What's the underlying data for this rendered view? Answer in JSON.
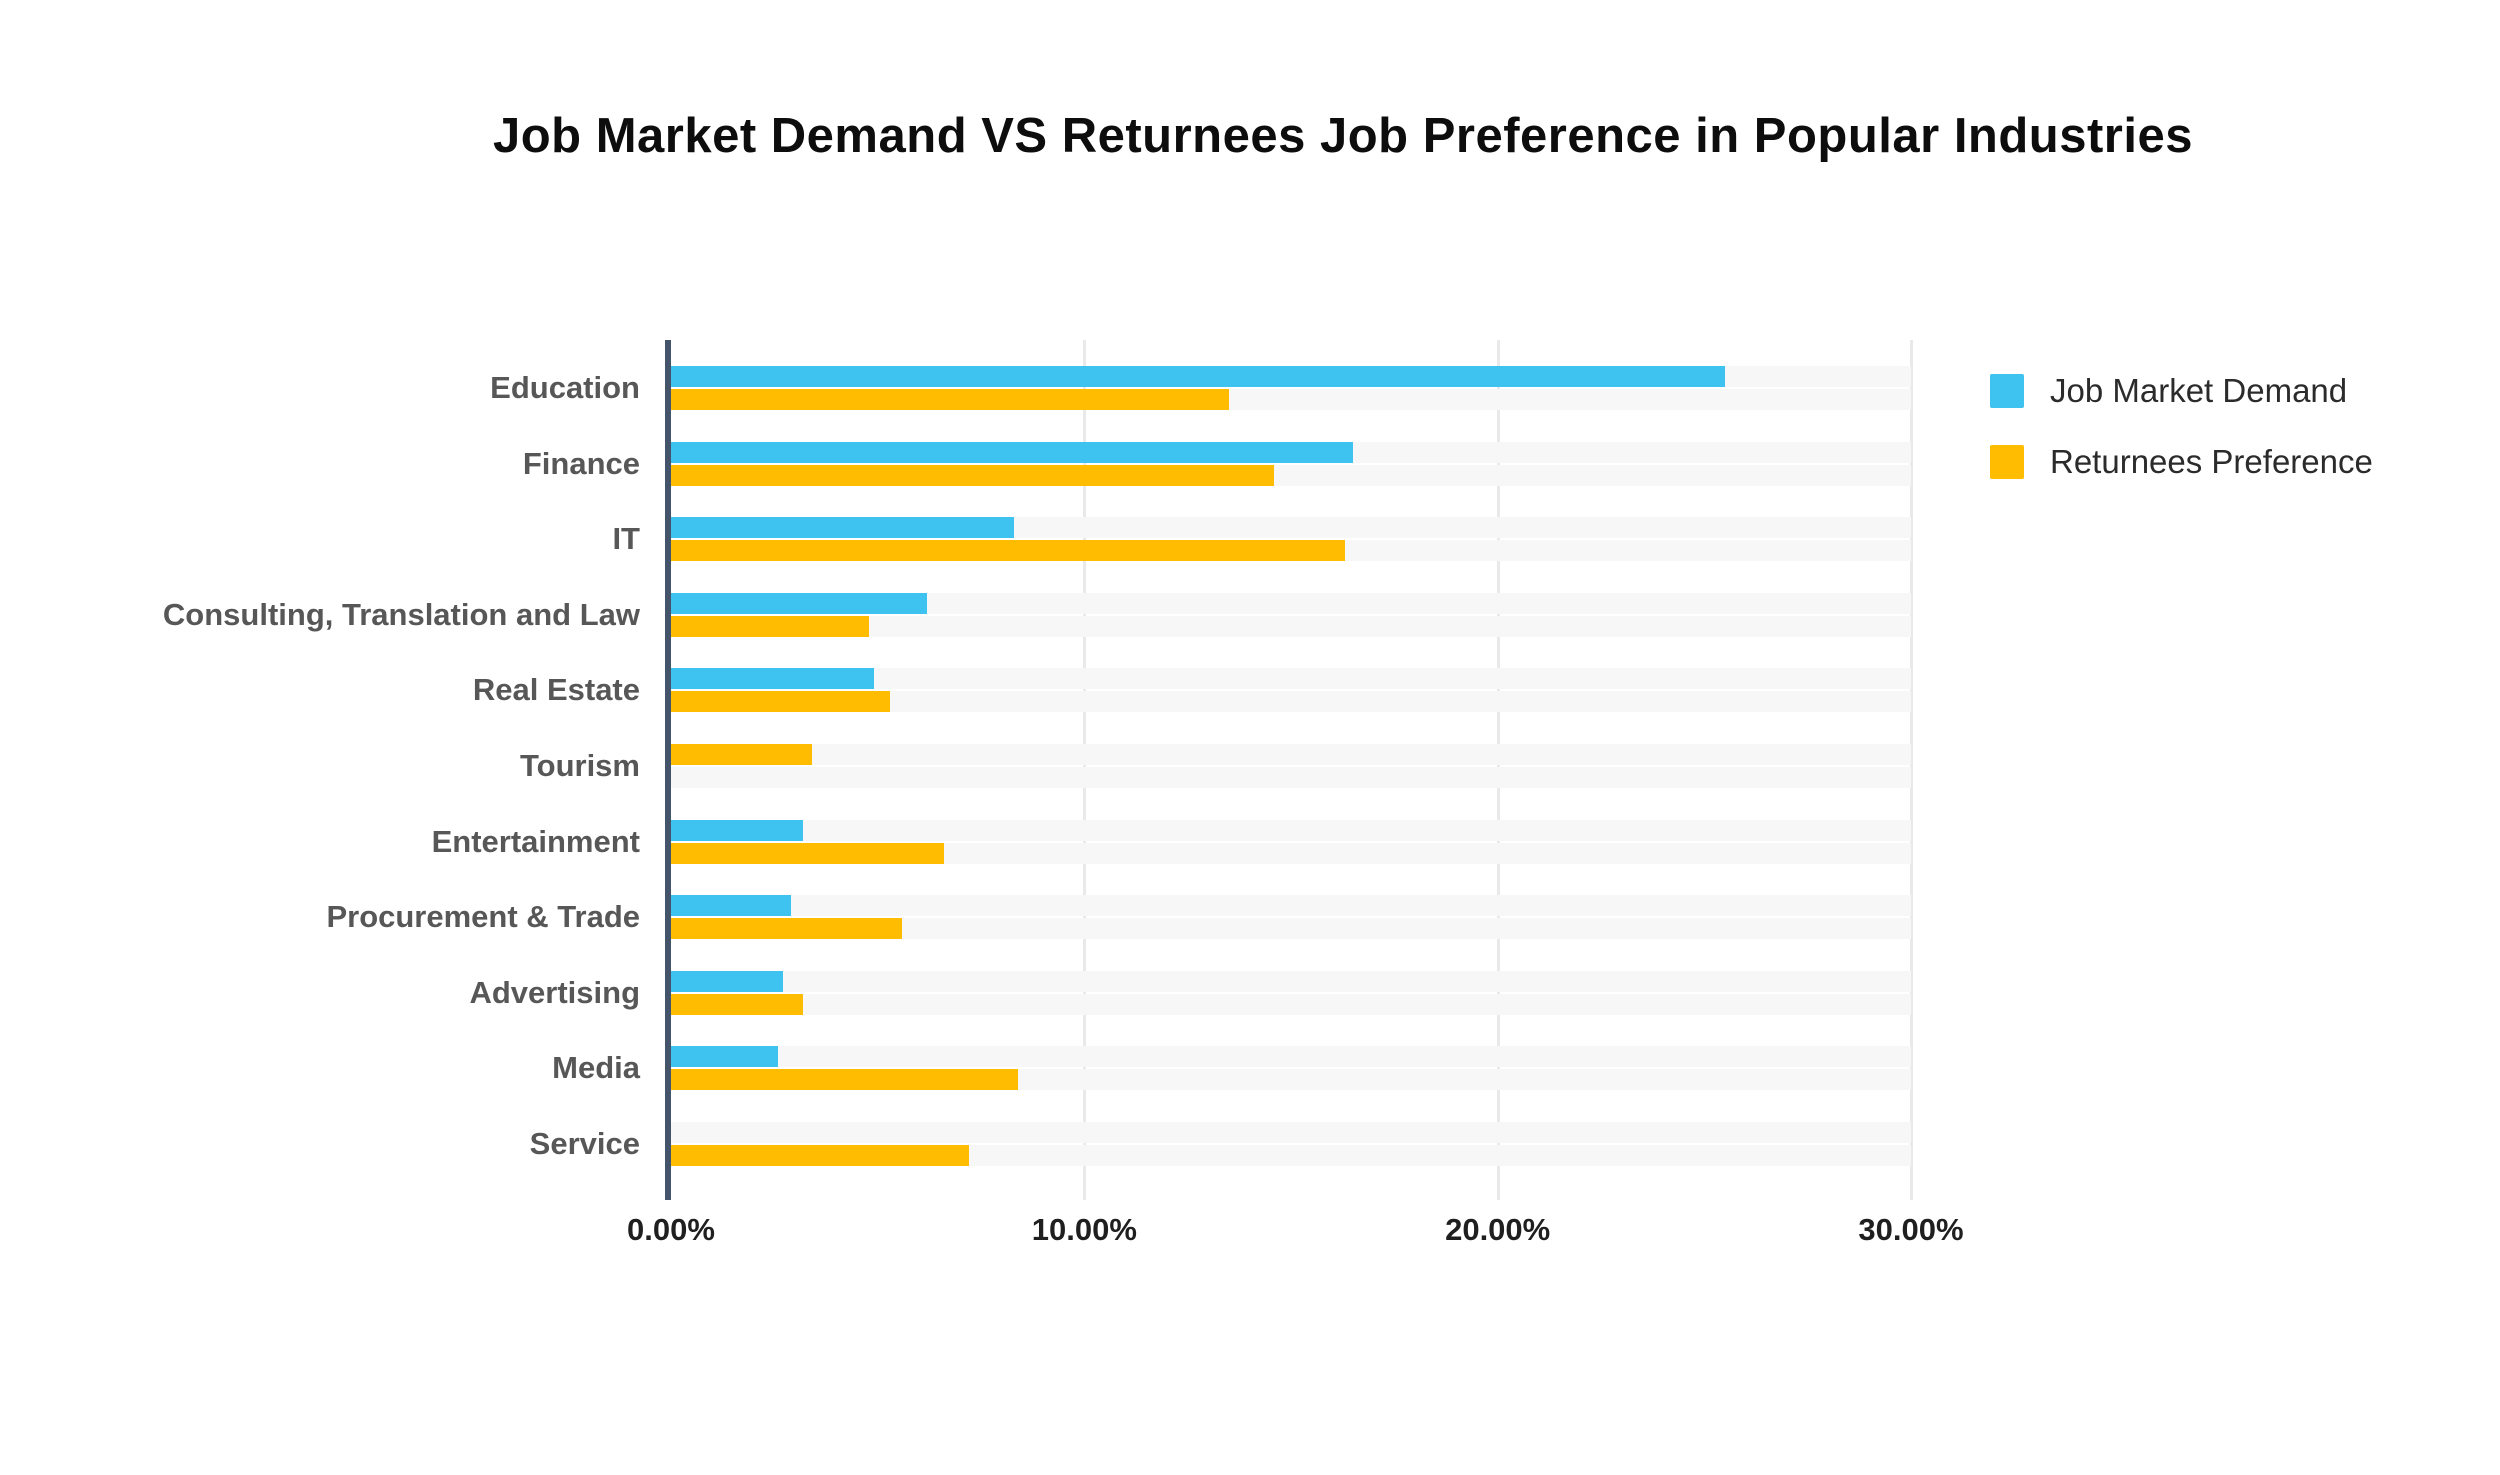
{
  "chart_data": {
    "type": "bar",
    "orientation": "horizontal",
    "title": "Job Market Demand VS Returnees Job Preference in Popular Industries",
    "categories": [
      "Education",
      "Finance",
      "IT",
      "Consulting, Translation and Law",
      "Real Estate",
      "Tourism",
      "Entertainment",
      "Procurement & Trade",
      "Advertising",
      "Media",
      "Service"
    ],
    "series": [
      {
        "name": "Job Market Demand",
        "key": "demand",
        "color": "#3EC2EF",
        "values": [
          25.5,
          16.5,
          8.3,
          6.2,
          4.9,
          0,
          3.2,
          2.9,
          2.7,
          2.6,
          0
        ]
      },
      {
        "name": "Returnees Preference",
        "key": "preference",
        "color": "#FFBC00",
        "values": [
          13.5,
          14.6,
          16.3,
          4.8,
          5.3,
          3.4,
          6.6,
          5.6,
          3.2,
          8.4,
          7.2
        ]
      }
    ],
    "bar_slots": [
      [
        "demand",
        "preference"
      ],
      [
        "demand",
        "preference"
      ],
      [
        "demand",
        "preference"
      ],
      [
        "demand",
        "preference"
      ],
      [
        "demand",
        "preference"
      ],
      [
        "preference",
        null
      ],
      [
        "demand",
        "preference"
      ],
      [
        "demand",
        "preference"
      ],
      [
        "demand",
        "preference"
      ],
      [
        "demand",
        "preference"
      ],
      [
        null,
        "preference"
      ]
    ],
    "xlim": [
      0,
      30
    ],
    "x_tick_labels": [
      "0.00%",
      "10.00%",
      "20.00%",
      "30.00%"
    ],
    "x_tick_values": [
      0,
      10,
      20,
      30
    ],
    "grid": true,
    "legend_position": "top-right",
    "legend": [
      {
        "label": "Job Market Demand",
        "color": "#3EC2EF"
      },
      {
        "label": "Returnees Preference",
        "color": "#FFBC00"
      }
    ],
    "colors": {
      "demand_bar": "#3EC2EF",
      "preference_bar": "#FFBC00",
      "axis_line": "#44546A",
      "row_stripe": "#f7f7f7",
      "gridline": "#e9e9e9",
      "title_text": "#0d0d0d",
      "category_label_text": "#575757",
      "tick_label_text": "#1f1f1f",
      "legend_text": "#2b2b2b",
      "background": "#ffffff"
    }
  }
}
